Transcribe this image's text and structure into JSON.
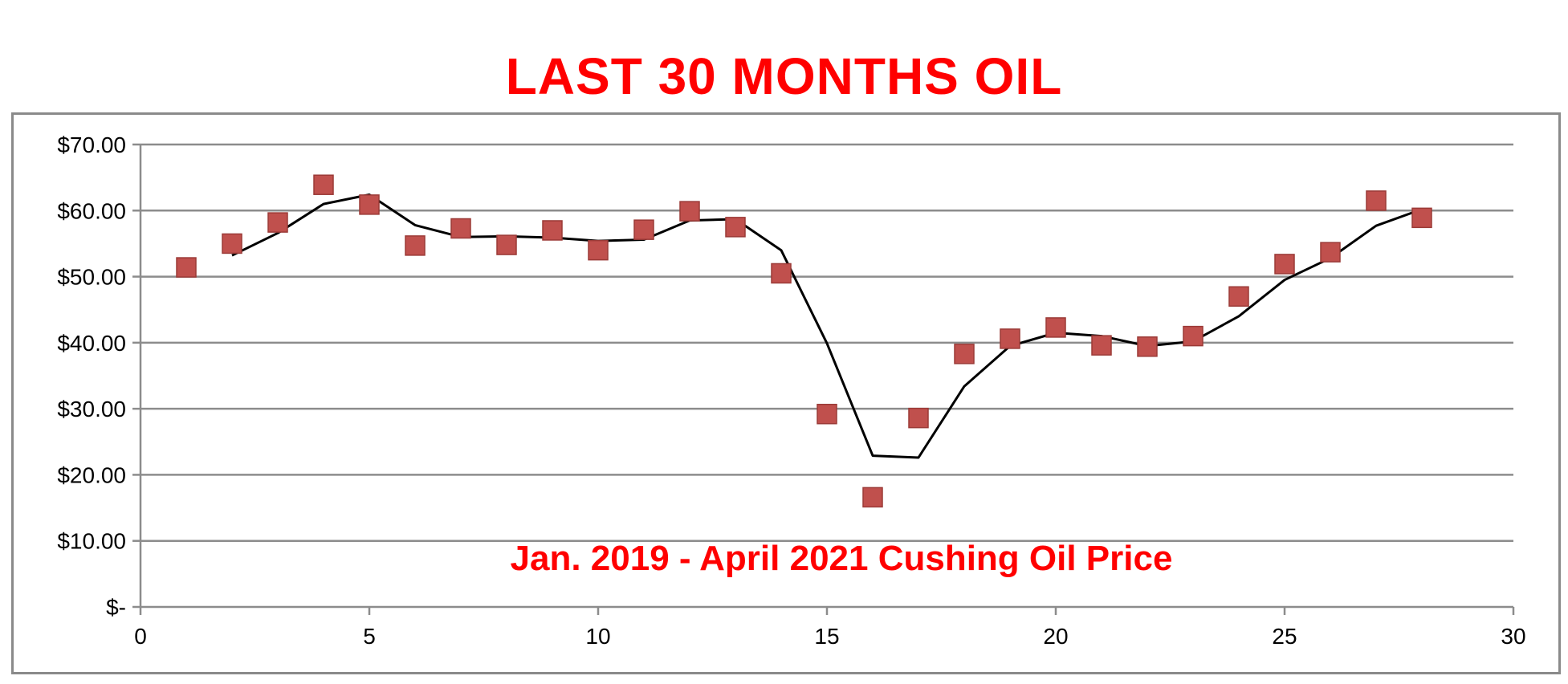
{
  "colors": {
    "title": "#ff0000",
    "marker": "#c0504d",
    "marker_edge": "#9b3a37",
    "trend": "#000000",
    "grid": "#8c8c8c",
    "frame": "#8a8a8a"
  },
  "chart_data": {
    "type": "scatter",
    "title": "LAST 30 MONTHS OIL",
    "annotation": "Jan. 2019 - April 2021 Cushing Oil Price",
    "xlabel": "",
    "ylabel": "",
    "xlim": [
      0,
      30
    ],
    "ylim": [
      0,
      70
    ],
    "grid": true,
    "legend": "none",
    "x_ticks": [
      {
        "value": 0,
        "label": "0"
      },
      {
        "value": 5,
        "label": "5"
      },
      {
        "value": 10,
        "label": "10"
      },
      {
        "value": 15,
        "label": "15"
      },
      {
        "value": 20,
        "label": "20"
      },
      {
        "value": 25,
        "label": "25"
      },
      {
        "value": 30,
        "label": "30"
      }
    ],
    "y_ticks": [
      {
        "value": 0,
        "label": "$-"
      },
      {
        "value": 10,
        "label": "$10.00"
      },
      {
        "value": 20,
        "label": "$20.00"
      },
      {
        "value": 30,
        "label": "$30.00"
      },
      {
        "value": 40,
        "label": "$40.00"
      },
      {
        "value": 50,
        "label": "$50.00"
      },
      {
        "value": 60,
        "label": "$60.00"
      },
      {
        "value": 70,
        "label": "$70.00"
      }
    ],
    "series": [
      {
        "type": "scatter",
        "x": [
          1,
          2,
          3,
          4,
          5,
          6,
          7,
          8,
          9,
          10,
          11,
          12,
          13,
          14,
          15,
          16,
          17,
          18,
          19,
          20,
          21,
          22,
          23,
          24,
          25,
          26,
          27,
          28
        ],
        "y": [
          51.4,
          55.0,
          58.2,
          63.9,
          60.9,
          54.7,
          57.3,
          54.8,
          57.0,
          54.0,
          57.1,
          59.9,
          57.5,
          50.5,
          29.2,
          16.6,
          28.6,
          38.3,
          40.6,
          42.3,
          39.6,
          39.4,
          41.0,
          47.0,
          51.9,
          53.7,
          61.5,
          58.9
        ]
      },
      {
        "type": "line",
        "x": [
          2,
          3,
          4,
          5,
          6,
          7,
          8,
          9,
          10,
          11,
          12,
          13,
          14,
          15,
          16,
          17,
          18,
          19,
          20,
          21,
          22,
          23,
          24,
          25,
          26,
          27,
          28
        ],
        "y": [
          53.2,
          56.6,
          61.0,
          62.4,
          57.8,
          56.0,
          56.1,
          55.9,
          55.4,
          55.6,
          58.5,
          58.7,
          54.0,
          39.9,
          22.9,
          22.6,
          33.4,
          39.5,
          41.5,
          41.0,
          39.5,
          40.2,
          44.0,
          49.5,
          52.8,
          57.7,
          60.2
        ]
      }
    ]
  }
}
